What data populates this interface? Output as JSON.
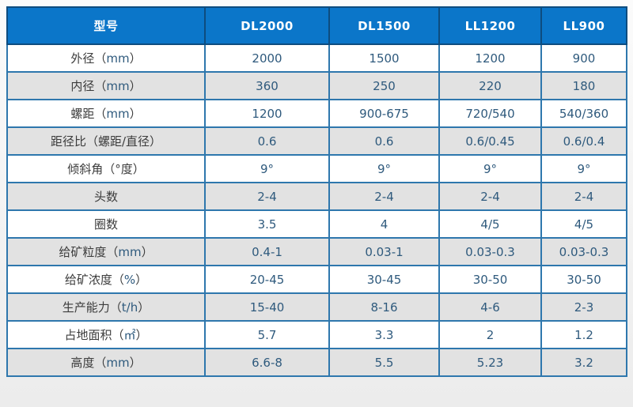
{
  "colors": {
    "header_bg": "#0b76c9",
    "header_border": "#0d4c7f",
    "body_border": "#2e77ad",
    "row_alt_bg": "#e2e2e2",
    "label_color": "#3c3c3c",
    "value_color": "#2f5a7d"
  },
  "table": {
    "header": {
      "model_label": "型号",
      "columns": [
        "DL2000",
        "DL1500",
        "LL1200",
        "LL900"
      ]
    },
    "rows": [
      {
        "label": "外径（mm）",
        "values": [
          "2000",
          "1500",
          "1200",
          "900"
        ]
      },
      {
        "label": "内径（mm）",
        "values": [
          "360",
          "250",
          "220",
          "180"
        ]
      },
      {
        "label": "螺距（mm）",
        "values": [
          "1200",
          "900-675",
          "720/540",
          "540/360"
        ]
      },
      {
        "label": "距径比（螺距/直径）",
        "values": [
          "0.6",
          "0.6",
          "0.6/0.45",
          "0.6/0.4"
        ]
      },
      {
        "label": "倾斜角（°度）",
        "values": [
          "9°",
          "9°",
          "9°",
          "9°"
        ]
      },
      {
        "label": "头数",
        "values": [
          "2-4",
          "2-4",
          "2-4",
          "2-4"
        ]
      },
      {
        "label": "圈数",
        "values": [
          "3.5",
          "4",
          "4/5",
          "4/5"
        ]
      },
      {
        "label": "给矿粒度（mm）",
        "values": [
          "0.4-1",
          "0.03-1",
          "0.03-0.3",
          "0.03-0.3"
        ]
      },
      {
        "label": "给矿浓度（%）",
        "values": [
          "20-45",
          "30-45",
          "30-50",
          "30-50"
        ]
      },
      {
        "label": "生产能力（t/h）",
        "values": [
          "15-40",
          "8-16",
          "4-6",
          "2-3"
        ]
      },
      {
        "label": "占地面积（㎡）",
        "values": [
          "5.7",
          "3.3",
          "2",
          "1.2"
        ]
      },
      {
        "label": "高度（mm）",
        "values": [
          "6.6-8",
          "5.5",
          "5.23",
          "3.2"
        ]
      }
    ]
  }
}
